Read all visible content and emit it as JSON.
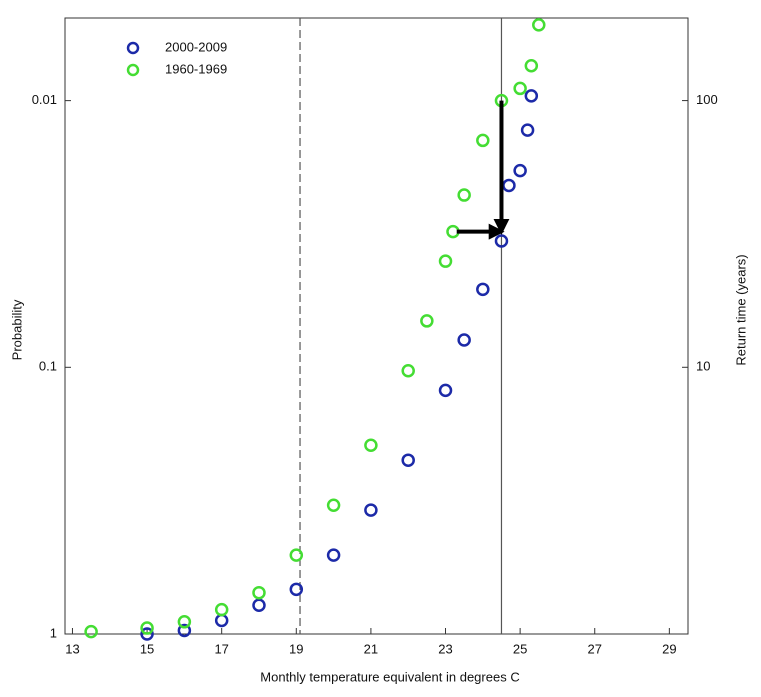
{
  "chart_data": {
    "type": "scatter",
    "xlabel": "Monthly temperature equivalent in degrees C",
    "ylabel": "Probability",
    "y2label": "Return time (years)",
    "xlim": [
      12.8,
      29.5
    ],
    "xticks": [
      13,
      15,
      17,
      19,
      21,
      23,
      25,
      27,
      29
    ],
    "ylim": [
      1,
      0.0049
    ],
    "yticks": [
      1,
      0.1,
      0.01
    ],
    "ylog": true,
    "y2lim": [
      1,
      204
    ],
    "y2ticks": [
      10,
      100
    ],
    "y2log": true,
    "legend": "upper left",
    "series": [
      {
        "name": "2000-2009",
        "color": "#1c2aa8",
        "x": [
          15,
          16,
          17,
          18,
          19,
          20,
          21,
          22,
          23,
          23.5,
          24,
          24.5,
          24.7,
          25,
          25.2,
          25.3
        ],
        "values": [
          1.0,
          0.97,
          0.89,
          0.78,
          0.68,
          0.506,
          0.343,
          0.223,
          0.122,
          0.079,
          0.051,
          0.0336,
          0.0208,
          0.0183,
          0.0129,
          0.0096
        ]
      },
      {
        "name": "1960-1969",
        "color": "#44dd33",
        "x": [
          13.5,
          15,
          16,
          17,
          18,
          19,
          20,
          21,
          22,
          22.5,
          23,
          23.2,
          23.5,
          24,
          24.5,
          25,
          25.3,
          25.5
        ],
        "values": [
          0.98,
          0.95,
          0.9,
          0.81,
          0.7,
          0.506,
          0.329,
          0.196,
          0.103,
          0.067,
          0.04,
          0.031,
          0.0226,
          0.0141,
          0.01,
          0.009,
          0.0074,
          0.0052
        ]
      }
    ],
    "vlines": [
      {
        "x": 19.1,
        "style": "dashed"
      },
      {
        "x": 24.5,
        "style": "solid"
      }
    ],
    "arrows": [
      {
        "from": [
          23.3,
          0.031
        ],
        "to": [
          24.5,
          0.031
        ]
      },
      {
        "from": [
          24.5,
          0.01
        ],
        "to": [
          24.5,
          0.031
        ]
      }
    ]
  }
}
